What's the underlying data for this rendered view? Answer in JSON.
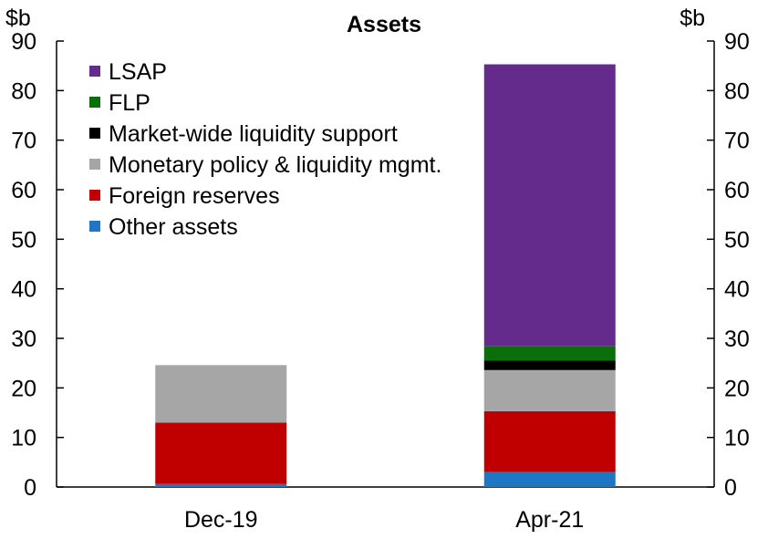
{
  "chart_data": {
    "type": "bar",
    "stacked": true,
    "title": "Assets",
    "y_unit_left": "$b",
    "y_unit_right": "$b",
    "ylim": [
      0,
      90
    ],
    "yticks": [
      0,
      10,
      20,
      30,
      40,
      50,
      60,
      70,
      80,
      90
    ],
    "categories": [
      "Dec-19",
      "Apr-21"
    ],
    "legend_position": "top-left",
    "grid": false,
    "series": [
      {
        "name": "Other assets",
        "color": "#1f77c4",
        "values": [
          0.6,
          3.0
        ]
      },
      {
        "name": "Foreign reserves",
        "color": "#c00000",
        "values": [
          12.4,
          12.3
        ]
      },
      {
        "name": "Monetary policy & liquidity mgmt.",
        "color": "#a6a6a6",
        "values": [
          11.6,
          8.3
        ]
      },
      {
        "name": "Market-wide liquidity support",
        "color": "#000000",
        "values": [
          0,
          1.9
        ]
      },
      {
        "name": "FLP",
        "color": "#0a6e0a",
        "values": [
          0,
          2.9
        ]
      },
      {
        "name": "LSAP",
        "color": "#642a8c",
        "values": [
          0,
          56.9
        ]
      }
    ]
  }
}
